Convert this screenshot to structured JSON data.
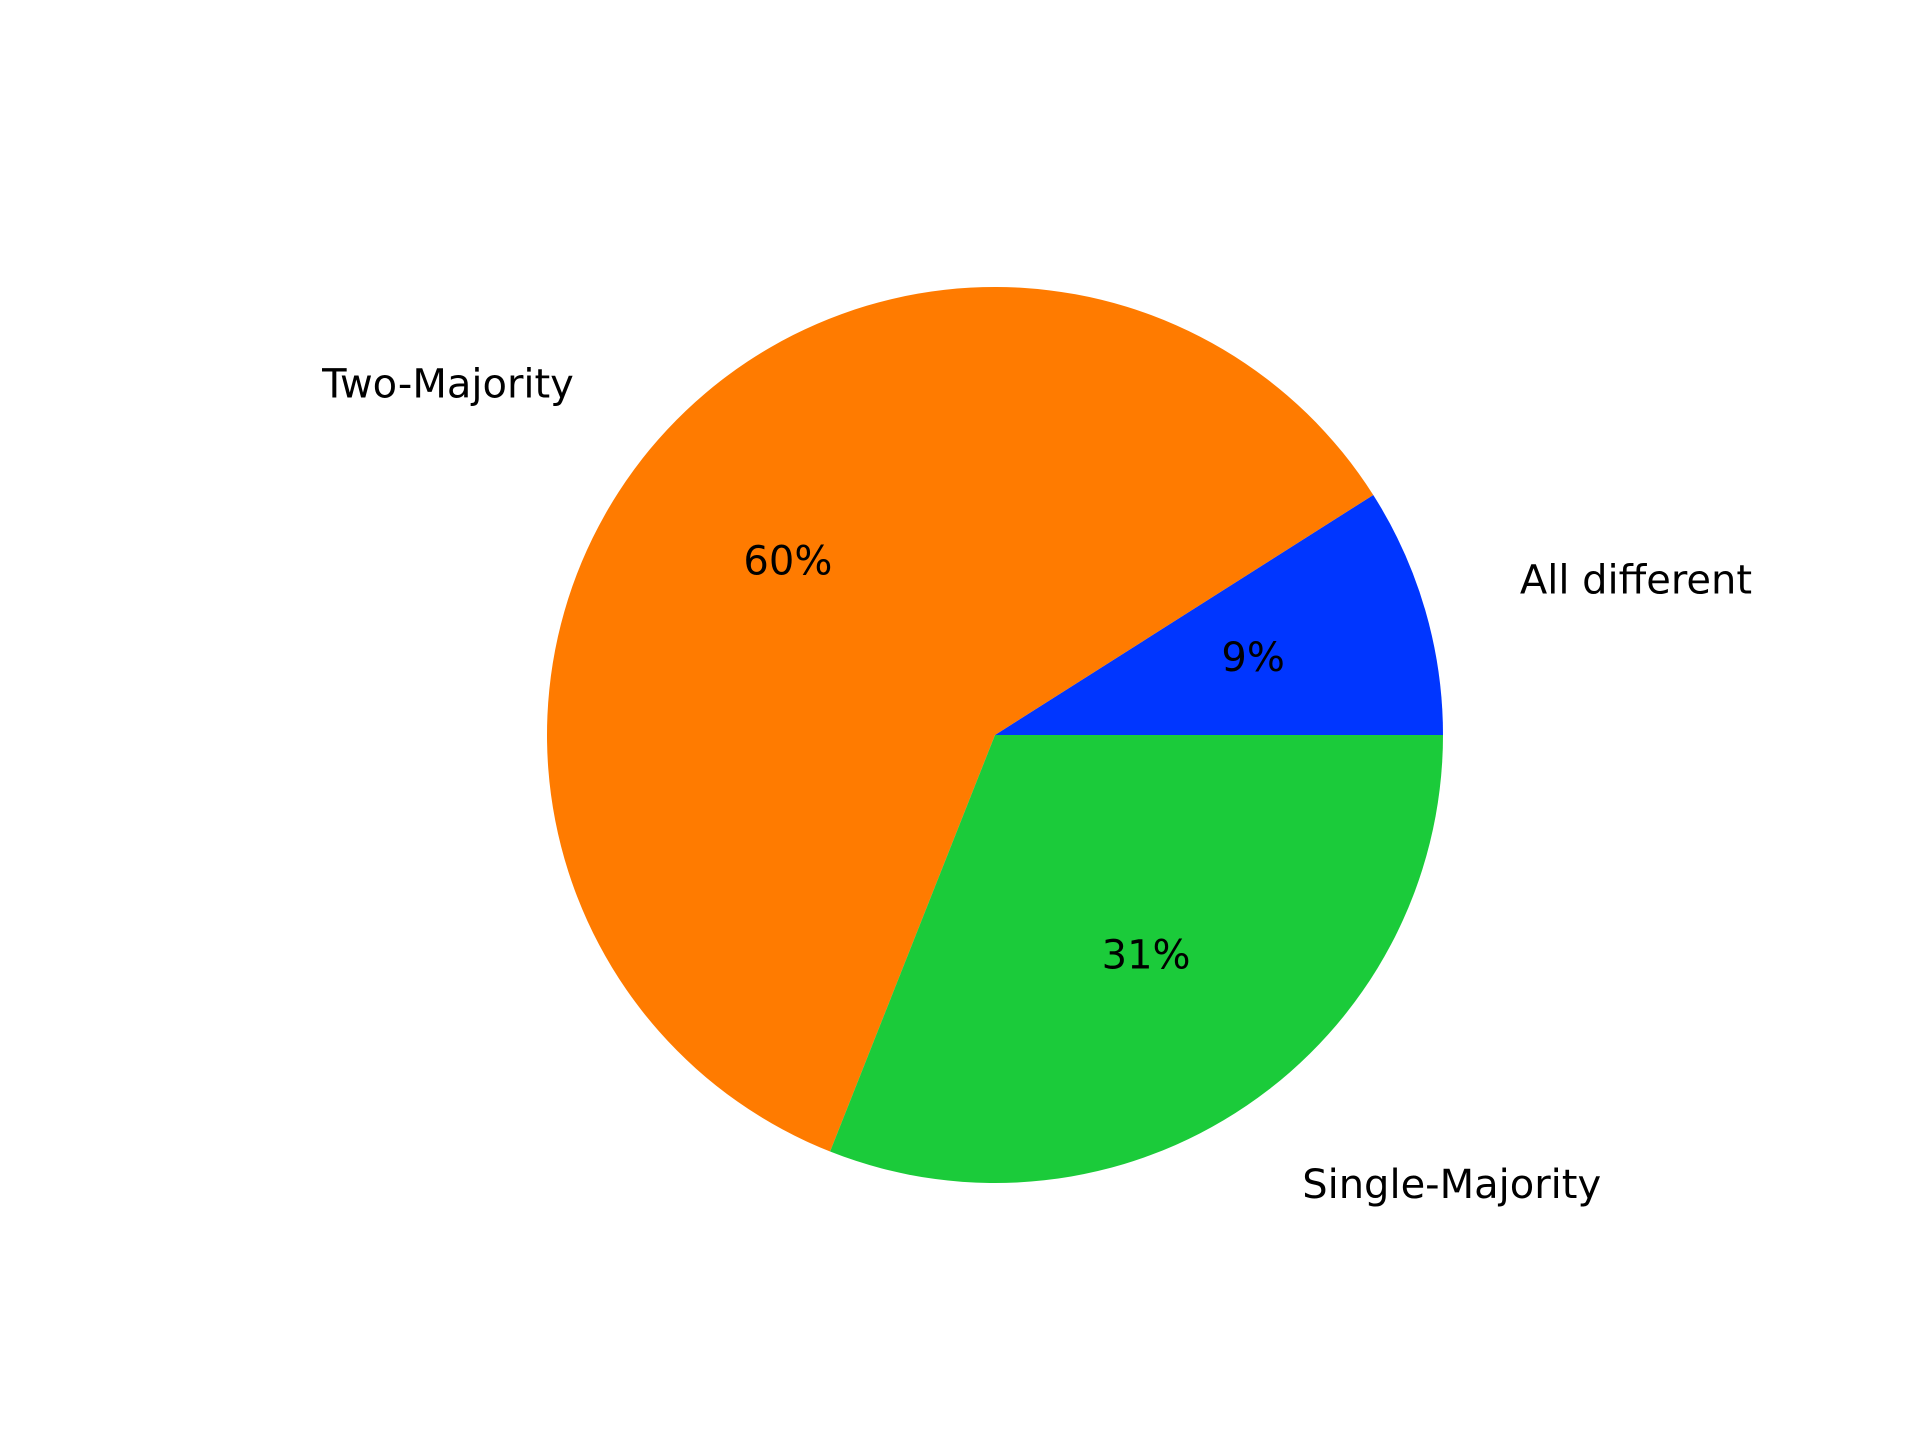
{
  "chart_data": {
    "type": "pie",
    "categories": [
      "All different",
      "Two-Majority",
      "Single-Majority"
    ],
    "values": [
      9,
      60,
      31
    ],
    "value_labels": [
      "9%",
      "60%",
      "31%"
    ],
    "colors": [
      "#0036ff",
      "#ff7b00",
      "#1bcb3a"
    ],
    "start_angle_deg": 0,
    "direction": "counterclockwise"
  }
}
